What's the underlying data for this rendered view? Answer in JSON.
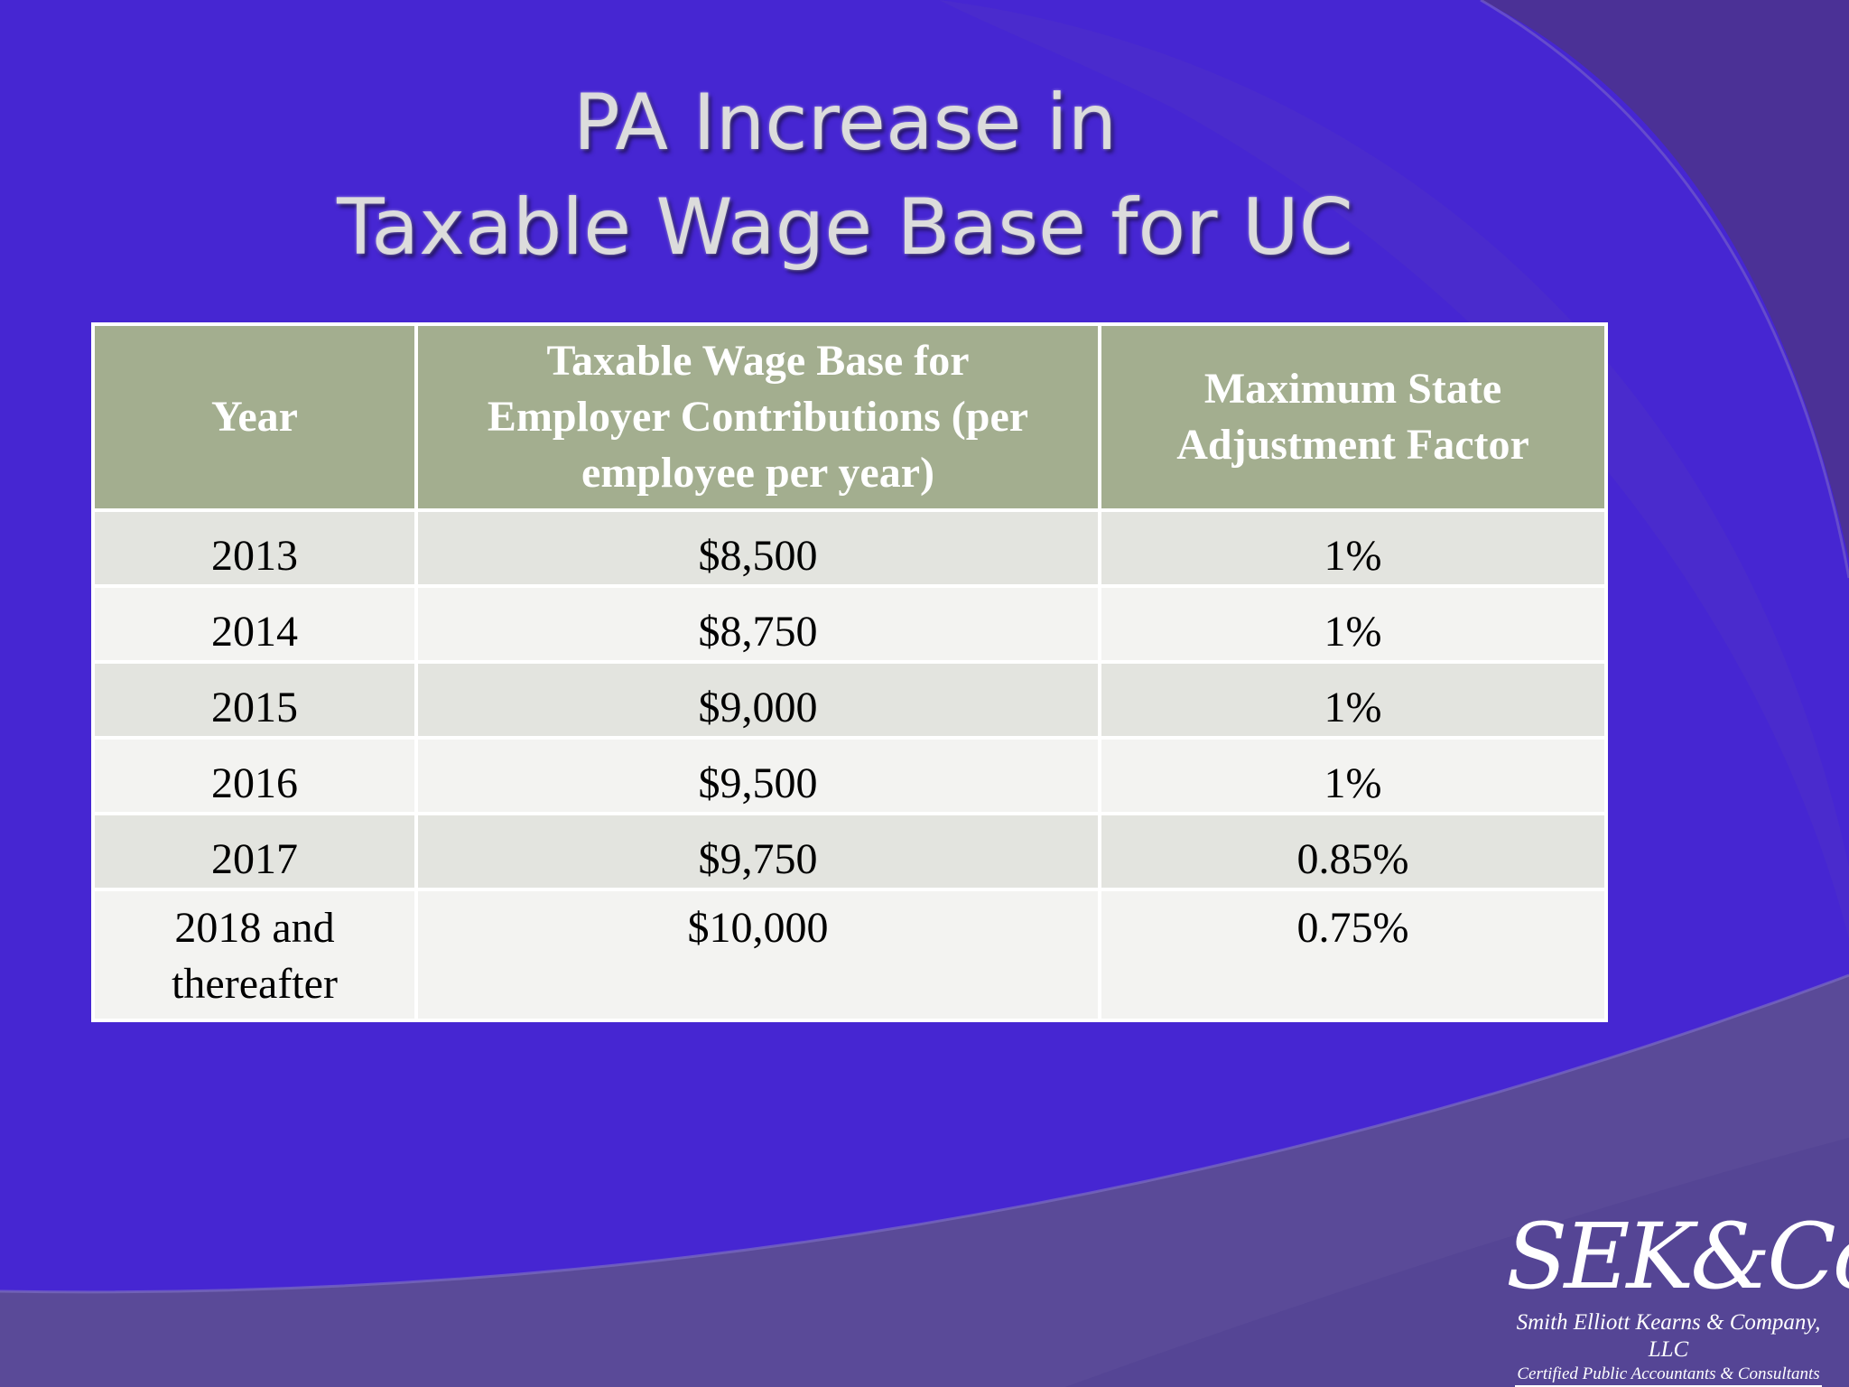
{
  "slide": {
    "title_line1": "PA Increase in",
    "title_line2": "Taxable Wage Base for UC"
  },
  "table": {
    "headers": [
      "Year",
      "Taxable Wage Base for Employer Contributions (per employee per year)",
      "Maximum State Adjustment Factor"
    ],
    "rows": [
      [
        "2013",
        "$8,500",
        "1%"
      ],
      [
        "2014",
        "$8,750",
        "1%"
      ],
      [
        "2015",
        "$9,000",
        "1%"
      ],
      [
        "2016",
        "$9,500",
        "1%"
      ],
      [
        "2017",
        "$9,750",
        "0.85%"
      ],
      [
        "2018 and thereafter",
        "$10,000",
        "0.75%"
      ]
    ]
  },
  "logo": {
    "mark": "SEK&Co",
    "company": "Smith Elliott Kearns & Company, LLC",
    "tagline": "Certified Public Accountants & Consultants"
  },
  "colors": {
    "background": "#4626d2",
    "header_fill": "#a3ae8f",
    "row_odd": "#e3e4df",
    "row_even": "#f3f3f1"
  }
}
